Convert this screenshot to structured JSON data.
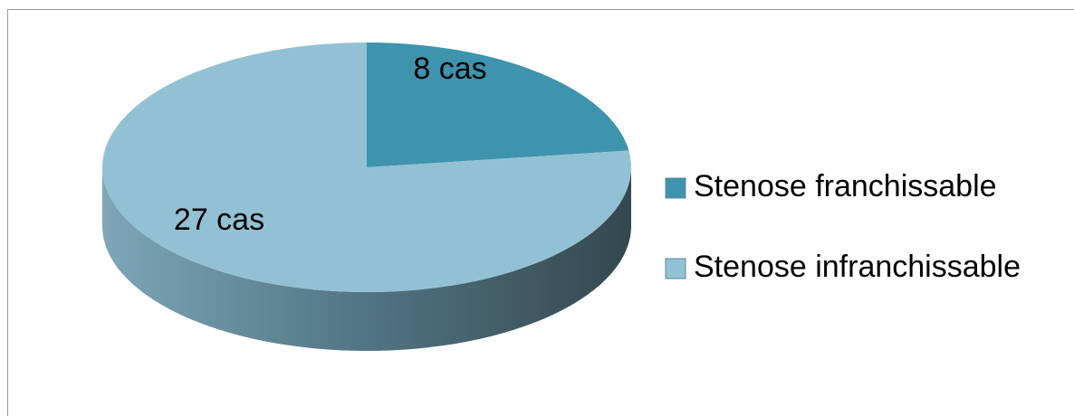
{
  "chart_data": {
    "type": "pie",
    "categories": [
      "Stenose franchissable",
      "Stenose infranchissable"
    ],
    "values": [
      8,
      27
    ],
    "value_labels": [
      "8 cas",
      "27 cas"
    ],
    "colors": [
      "#3e93ad",
      "#93c1d4"
    ],
    "legend": "right"
  }
}
